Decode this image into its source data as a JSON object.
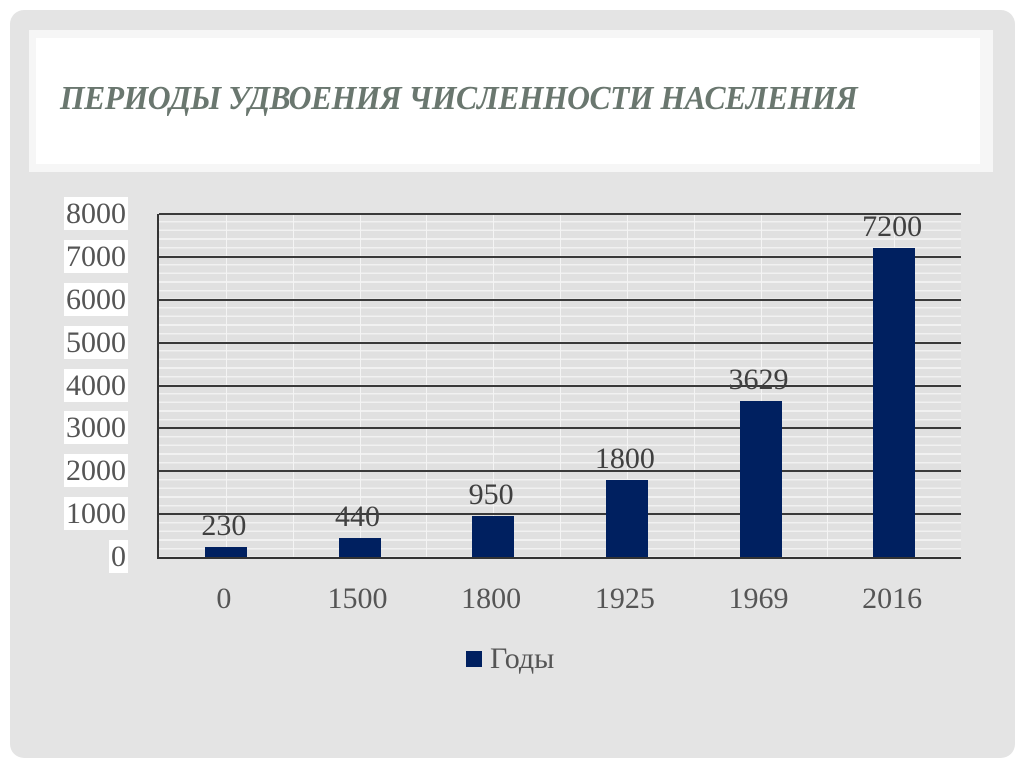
{
  "slide": {
    "title": "ПЕРИОДЫ УДВОЕНИЯ ЧИСЛЕННОСТИ НАСЕЛЕНИЯ"
  },
  "chart_data": {
    "type": "bar",
    "title": "ПЕРИОДЫ УДВОЕНИЯ ЧИСЛЕННОСТИ НАСЕЛЕНИЯ",
    "categories": [
      "0",
      "1500",
      "1800",
      "1925",
      "1969",
      "2016"
    ],
    "series": [
      {
        "name": "Годы",
        "values": [
          230,
          440,
          950,
          1800,
          3629,
          7200
        ],
        "color": "#002060"
      }
    ],
    "data_labels": [
      "230",
      "440",
      "950",
      "1800",
      "3629",
      "7200"
    ],
    "xlabel": "",
    "ylabel": "",
    "ylim": [
      0,
      8000
    ],
    "yticks": [
      "0",
      "1000",
      "2000",
      "3000",
      "4000",
      "5000",
      "6000",
      "7000",
      "8000"
    ],
    "grid": true,
    "legend": {
      "position": "bottom",
      "entries": [
        "Годы"
      ]
    }
  }
}
